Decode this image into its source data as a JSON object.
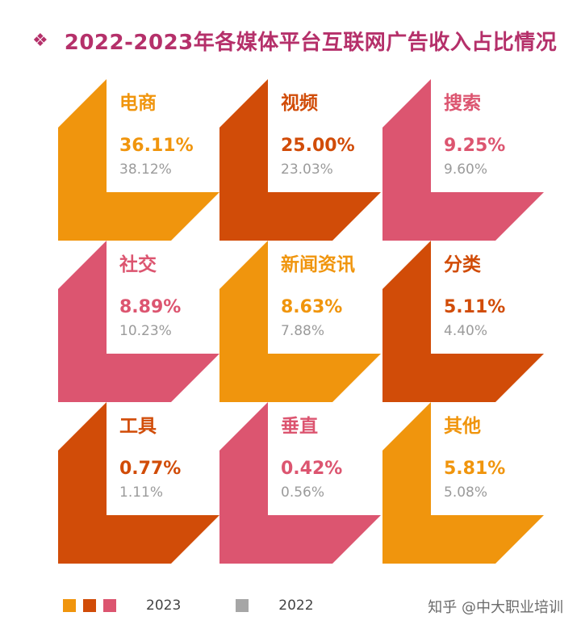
{
  "title": "2022-2023年各媒体平台互联网广告收入占比情况",
  "title_bullet": "❖",
  "colors": {
    "orange": "#f0950d",
    "dark_orange": "#d14c08",
    "pink": "#dc5570",
    "gray": "#a6a6a6",
    "title": "#b5306a"
  },
  "chart_data": {
    "type": "table",
    "title": "2022-2023年各媒体平台互联网广告收入占比情况",
    "series": [
      {
        "name": "2023",
        "values": [
          "36.11%",
          "25.00%",
          "9.25%",
          "8.89%",
          "8.63%",
          "5.11%",
          "0.77%",
          "0.42%",
          "5.81%"
        ]
      },
      {
        "name": "2022",
        "values": [
          "38.12%",
          "23.03%",
          "9.60%",
          "10.23%",
          "7.88%",
          "4.40%",
          "1.11%",
          "0.56%",
          "5.08%"
        ]
      }
    ],
    "categories": [
      "电商",
      "视频",
      "搜索",
      "社交",
      "新闻资讯",
      "分类",
      "工具",
      "垂直",
      "其他"
    ],
    "tiles": [
      {
        "label": "电商",
        "v2023": "36.11%",
        "v2022": "38.12%",
        "color": "#f0950d"
      },
      {
        "label": "视频",
        "v2023": "25.00%",
        "v2022": "23.03%",
        "color": "#d14c08"
      },
      {
        "label": "搜索",
        "v2023": "9.25%",
        "v2022": "9.60%",
        "color": "#dc5570"
      },
      {
        "label": "社交",
        "v2023": "8.89%",
        "v2022": "10.23%",
        "color": "#dc5570"
      },
      {
        "label": "新闻资讯",
        "v2023": "8.63%",
        "v2022": "7.88%",
        "color": "#f0950d"
      },
      {
        "label": "分类",
        "v2023": "5.11%",
        "v2022": "4.40%",
        "color": "#d14c08"
      },
      {
        "label": "工具",
        "v2023": "0.77%",
        "v2022": "1.11%",
        "color": "#d14c08"
      },
      {
        "label": "垂直",
        "v2023": "0.42%",
        "v2022": "0.56%",
        "color": "#dc5570"
      },
      {
        "label": "其他",
        "v2023": "5.81%",
        "v2022": "5.08%",
        "color": "#f0950d"
      }
    ],
    "legend": [
      {
        "label": "2023",
        "colors": [
          "#f0950d",
          "#d14c08",
          "#dc5570"
        ]
      },
      {
        "label": "2022",
        "colors": [
          "#a6a6a6"
        ]
      }
    ]
  },
  "watermark": "知乎 @中大职业培训"
}
